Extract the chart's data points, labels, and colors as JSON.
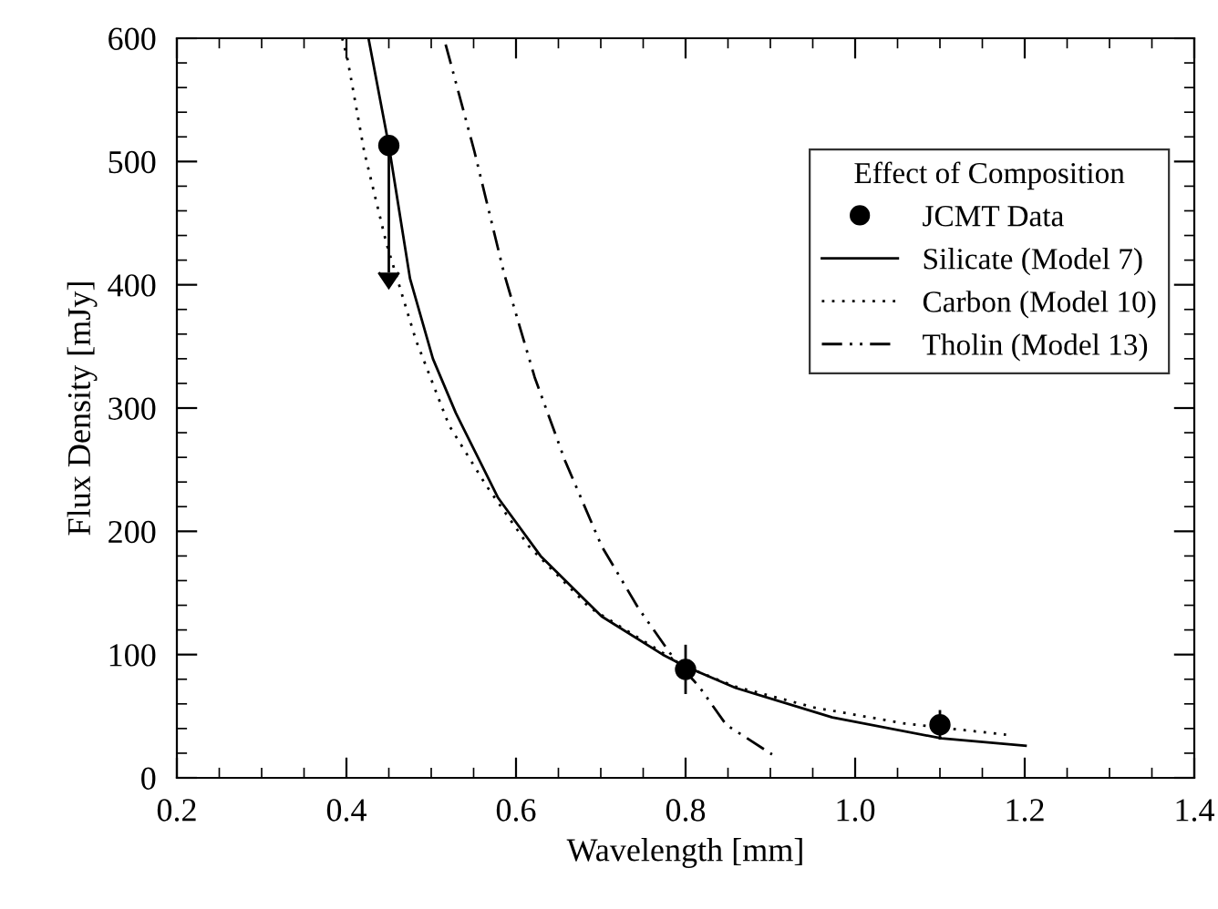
{
  "chart_data": {
    "type": "line",
    "xlabel": "Wavelength [mm]",
    "ylabel": "Flux Density [mJy]",
    "legend_title": "Effect of Composition",
    "xlim": [
      0.2,
      1.4
    ],
    "ylim": [
      0,
      600
    ],
    "xticks": [
      {
        "value": 0.2,
        "label": "0.2"
      },
      {
        "value": 0.4,
        "label": "0.4"
      },
      {
        "value": 0.6,
        "label": "0.6"
      },
      {
        "value": 0.8,
        "label": "0.8"
      },
      {
        "value": 1.0,
        "label": "1.0"
      },
      {
        "value": 1.2,
        "label": "1.2"
      },
      {
        "value": 1.4,
        "label": "1.4"
      }
    ],
    "yticks": [
      0,
      100,
      200,
      300,
      400,
      500,
      600
    ],
    "grid": false,
    "legend": "top right",
    "series": [
      {
        "name": "JCMT Data",
        "type": "scatter",
        "color": "#000000",
        "marker": "circle",
        "x": [
          0.45,
          0.8,
          1.1
        ],
        "values": [
          513,
          88,
          43
        ],
        "errors": [
          [
            410,
            513
          ],
          20,
          12
        ]
      },
      {
        "name": "Silicate (Model 7)",
        "type": "line",
        "color": "#000000",
        "line_style": "solid",
        "x": [
          0.426,
          0.45,
          0.475,
          0.502,
          0.529,
          0.579,
          0.629,
          0.701,
          0.773,
          0.801,
          0.859,
          0.973,
          1.102,
          1.201
        ],
        "values": [
          600,
          513,
          405,
          340,
          296,
          227,
          180,
          131,
          100,
          90,
          73,
          49,
          32,
          26
        ]
      },
      {
        "name": "Carbon (Model 10)",
        "type": "line",
        "color": "#000000",
        "line_style": "dotted",
        "x": [
          0.395,
          0.401,
          0.421,
          0.447,
          0.482,
          0.521,
          0.565,
          0.615,
          0.687,
          0.8,
          0.859,
          0.952,
          1.059,
          1.178
        ],
        "values": [
          600,
          584,
          508,
          434,
          355,
          286,
          237,
          188,
          138,
          90,
          74,
          57,
          44,
          35
        ]
      },
      {
        "name": "Tholin (Model 13)",
        "type": "line",
        "color": "#000000",
        "line_style": "dashdotdot",
        "x": [
          0.517,
          0.551,
          0.586,
          0.622,
          0.658,
          0.701,
          0.744,
          0.787,
          0.816,
          0.848,
          0.902
        ],
        "values": [
          595,
          508,
          409,
          325,
          257,
          188,
          138,
          96,
          74,
          43,
          19
        ]
      }
    ]
  }
}
